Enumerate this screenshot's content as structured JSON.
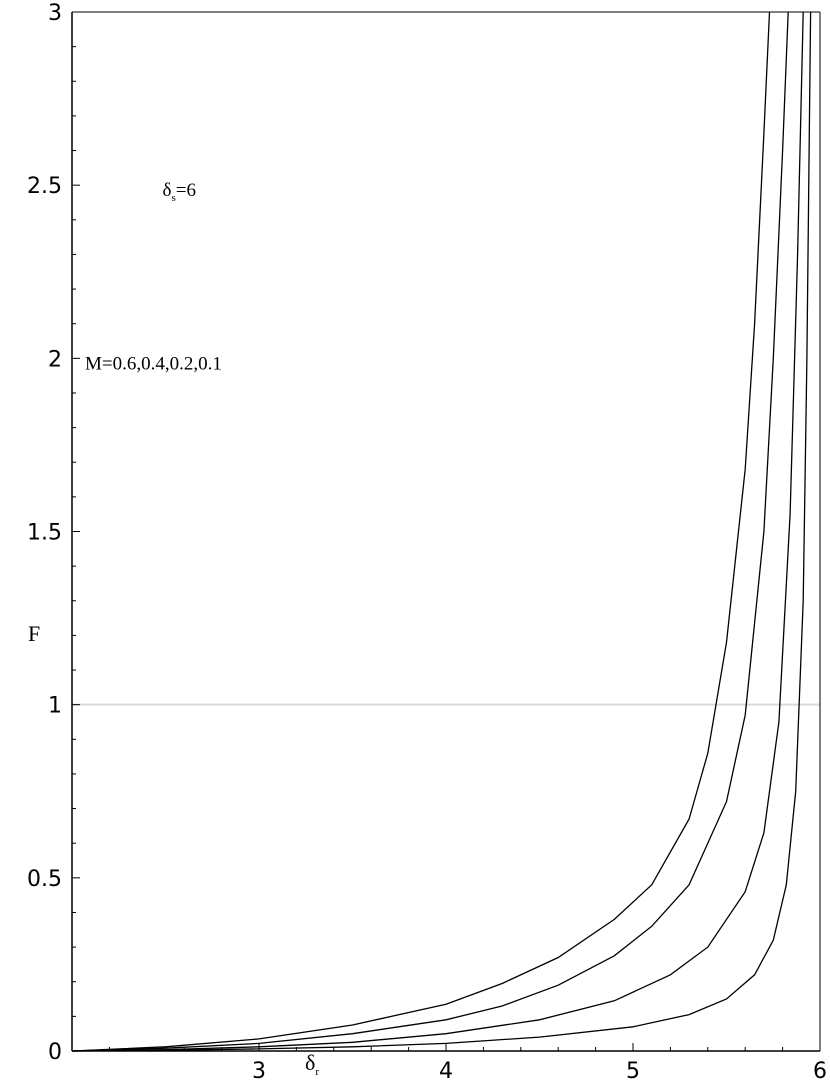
{
  "chart_data": {
    "type": "line",
    "xlabel": "δr",
    "ylabel": "F",
    "xlim": [
      2,
      6
    ],
    "ylim": [
      0,
      3
    ],
    "x_ticks": [
      3,
      4,
      5,
      6
    ],
    "y_ticks": [
      0,
      0.5,
      1,
      1.5,
      2,
      2.5,
      3
    ],
    "x_tick_labels": [
      "3",
      "4",
      "5",
      "6"
    ],
    "y_tick_labels": [
      "0",
      "0.5",
      "1",
      "1.5",
      "2",
      "2.5",
      "3"
    ],
    "reference_line": {
      "y": 1,
      "color": "#d9d9d9"
    },
    "grid": false,
    "legend": "none",
    "annotations": [
      {
        "text": "δs=6",
        "x": 2.5,
        "y": 2.48
      },
      {
        "text": "M=0.6,0.4,0.2,0.1",
        "x": 2.08,
        "y": 1.98
      }
    ],
    "series": [
      {
        "x": [
          2.0,
          2.5,
          3.0,
          3.5,
          4.0,
          4.3,
          4.6,
          4.9,
          5.1,
          5.3,
          5.4,
          5.5,
          5.6,
          5.65,
          5.7,
          5.73
        ],
        "values": [
          0.0,
          0.012,
          0.035,
          0.075,
          0.135,
          0.195,
          0.27,
          0.38,
          0.48,
          0.67,
          0.86,
          1.18,
          1.68,
          2.1,
          2.65,
          3.0
        ]
      },
      {
        "x": [
          2.0,
          2.5,
          3.0,
          3.5,
          4.0,
          4.3,
          4.6,
          4.9,
          5.1,
          5.3,
          5.5,
          5.6,
          5.7,
          5.75,
          5.8,
          5.83
        ],
        "values": [
          0.0,
          0.008,
          0.022,
          0.05,
          0.09,
          0.13,
          0.19,
          0.275,
          0.36,
          0.48,
          0.72,
          0.97,
          1.5,
          2.0,
          2.6,
          3.0
        ]
      },
      {
        "x": [
          2.0,
          2.5,
          3.0,
          3.5,
          4.0,
          4.5,
          4.9,
          5.2,
          5.4,
          5.6,
          5.7,
          5.78,
          5.84,
          5.88,
          5.91
        ],
        "values": [
          0.0,
          0.004,
          0.012,
          0.025,
          0.05,
          0.09,
          0.145,
          0.22,
          0.3,
          0.46,
          0.63,
          0.95,
          1.55,
          2.3,
          3.0
        ]
      },
      {
        "x": [
          2.0,
          2.5,
          3.0,
          3.5,
          4.0,
          4.5,
          5.0,
          5.3,
          5.5,
          5.65,
          5.75,
          5.82,
          5.87,
          5.91,
          5.93,
          5.95
        ],
        "values": [
          0.0,
          0.002,
          0.006,
          0.012,
          0.022,
          0.04,
          0.07,
          0.105,
          0.15,
          0.22,
          0.32,
          0.48,
          0.75,
          1.3,
          2.0,
          3.0
        ]
      }
    ]
  }
}
